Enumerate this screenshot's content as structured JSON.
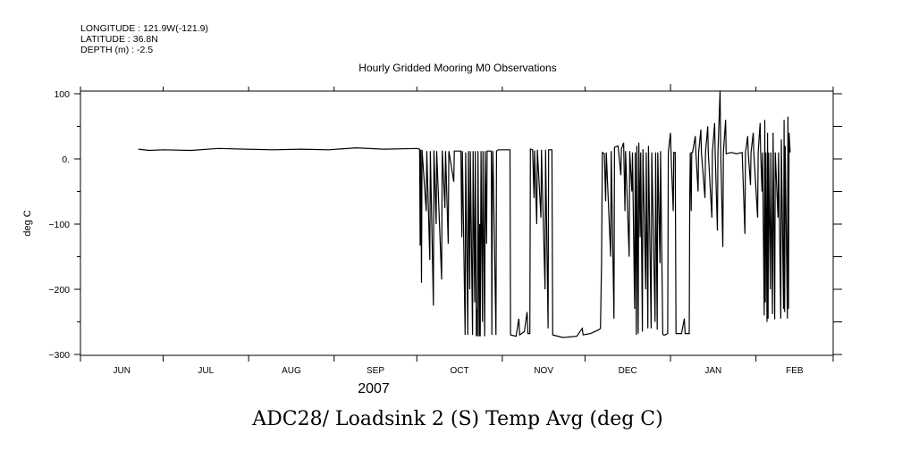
{
  "header": {
    "longitude": "LONGITUDE : 121.9W(-121.9)",
    "latitude": "LATITUDE : 36.8N",
    "depth": "DEPTH (m) : -2.5"
  },
  "chart_data": {
    "type": "line",
    "title": "Hourly Gridded Mooring M0 Observations",
    "caption": "ADC28/ Loadsink 2 (S) Temp Avg (deg C)",
    "xlabel": "2007",
    "ylabel": "deg C",
    "x_units": "days since 2007-06-01",
    "xlim": [
      0,
      273
    ],
    "ylim": [
      -300,
      104
    ],
    "grid": false,
    "month_ticks": [
      0,
      30,
      61,
      92,
      122,
      153,
      183,
      214,
      245,
      273
    ],
    "month_labels": [
      "JUN",
      "JUL",
      "AUG",
      "SEP",
      "OCT",
      "NOV",
      "DEC",
      "JAN",
      "FEB"
    ],
    "year_tick": 214,
    "y_major_ticks": [
      100,
      0,
      -100,
      -200,
      -300
    ],
    "y_tick_labels": [
      "100",
      "0.",
      "-100",
      "-200",
      "-300"
    ],
    "y_minor_ticks": [
      50,
      -50,
      -150,
      -250
    ],
    "series": [
      {
        "name": "Temp Avg",
        "points": [
          [
            21,
            15
          ],
          [
            25,
            13
          ],
          [
            30,
            14
          ],
          [
            40,
            13
          ],
          [
            50,
            16
          ],
          [
            60,
            15
          ],
          [
            70,
            14
          ],
          [
            80,
            15
          ],
          [
            90,
            14
          ],
          [
            100,
            17
          ],
          [
            110,
            15
          ],
          [
            122,
            16
          ],
          [
            123,
            15
          ],
          [
            123.2,
            -133
          ],
          [
            123.4,
            14
          ],
          [
            123.7,
            -190
          ],
          [
            123.9,
            14
          ],
          [
            125.4,
            -80
          ],
          [
            125.6,
            12
          ],
          [
            126.7,
            -155
          ],
          [
            126.9,
            12
          ],
          [
            128,
            -225
          ],
          [
            128.2,
            13
          ],
          [
            129,
            -100
          ],
          [
            129.2,
            12
          ],
          [
            131,
            -185
          ],
          [
            131.2,
            13
          ],
          [
            132.2,
            -75
          ],
          [
            132.4,
            12
          ],
          [
            133.4,
            -130
          ],
          [
            133.6,
            12
          ],
          [
            135.4,
            -35
          ],
          [
            135.6,
            12
          ],
          [
            138,
            12
          ],
          [
            138.3,
            -120
          ],
          [
            138.5,
            12
          ],
          [
            139.5,
            -270
          ],
          [
            139.7,
            10
          ],
          [
            140.5,
            -270
          ],
          [
            140.7,
            12
          ],
          [
            141.2,
            -200
          ],
          [
            141.4,
            12
          ],
          [
            142.2,
            -270
          ],
          [
            142.4,
            12
          ],
          [
            143,
            -220
          ],
          [
            143.2,
            12
          ],
          [
            143.6,
            -272
          ],
          [
            143.8,
            -230
          ],
          [
            144,
            -272
          ],
          [
            144.2,
            12
          ],
          [
            144.6,
            -272
          ],
          [
            144.8,
            -100
          ],
          [
            145,
            -272
          ],
          [
            145.3,
            12
          ],
          [
            145.8,
            -250
          ],
          [
            146,
            12
          ],
          [
            146.6,
            -272
          ],
          [
            146.8,
            12
          ],
          [
            147.3,
            -130
          ],
          [
            147.5,
            12
          ],
          [
            149,
            12
          ],
          [
            149.2,
            -270
          ],
          [
            149.4,
            -40
          ],
          [
            149.6,
            12
          ],
          [
            150.7,
            -270
          ],
          [
            150.9,
            12
          ],
          [
            151.5,
            14
          ],
          [
            154,
            14
          ],
          [
            155.8,
            14
          ],
          [
            156,
            -270
          ],
          [
            158,
            -272
          ],
          [
            159,
            -245
          ],
          [
            159.3,
            -270
          ],
          [
            161,
            -265
          ],
          [
            162,
            -235
          ],
          [
            162.3,
            -268
          ],
          [
            163,
            -268
          ],
          [
            163.2,
            15
          ],
          [
            164,
            14
          ],
          [
            164.5,
            -60
          ],
          [
            164.7,
            13
          ],
          [
            165.5,
            -100
          ],
          [
            165.7,
            14
          ],
          [
            167,
            -90
          ],
          [
            167.2,
            14
          ],
          [
            168.5,
            -200
          ],
          [
            168.7,
            14
          ],
          [
            169.6,
            -260
          ],
          [
            169.8,
            14
          ],
          [
            171,
            14
          ],
          [
            171.3,
            -270
          ],
          [
            175,
            -274
          ],
          [
            180,
            -272
          ],
          [
            182,
            -260
          ],
          [
            182.3,
            -270
          ],
          [
            185,
            -268
          ],
          [
            188,
            -262
          ],
          [
            188.6,
            -260
          ],
          [
            189,
            -160
          ],
          [
            189.3,
            10
          ],
          [
            190,
            8
          ],
          [
            190.5,
            -65
          ],
          [
            190.7,
            10
          ],
          [
            192.3,
            -150
          ],
          [
            192.5,
            12
          ],
          [
            193.5,
            -245
          ],
          [
            193.7,
            18
          ],
          [
            195,
            20
          ],
          [
            196,
            -25
          ],
          [
            196.2,
            15
          ],
          [
            197,
            25
          ],
          [
            197.5,
            -80
          ],
          [
            197.7,
            12
          ],
          [
            199,
            -150
          ],
          [
            199.2,
            12
          ],
          [
            200,
            -50
          ],
          [
            200.2,
            10
          ],
          [
            201,
            -230
          ],
          [
            201.2,
            10
          ],
          [
            201.6,
            -270
          ],
          [
            201.8,
            20
          ],
          [
            202.3,
            -268
          ],
          [
            202.5,
            25
          ],
          [
            203,
            -120
          ],
          [
            203.2,
            10
          ],
          [
            203.8,
            -265
          ],
          [
            204,
            15
          ],
          [
            205,
            -200
          ],
          [
            205.2,
            10
          ],
          [
            205.8,
            -260
          ],
          [
            206,
            20
          ],
          [
            207,
            -260
          ],
          [
            207.2,
            10
          ],
          [
            208.4,
            -250
          ],
          [
            208.6,
            10
          ],
          [
            209.2,
            -262
          ],
          [
            209.4,
            10
          ],
          [
            210.2,
            -160
          ],
          [
            210.4,
            12
          ],
          [
            211.2,
            -268
          ],
          [
            211.4,
            -270
          ],
          [
            212,
            -270
          ],
          [
            213,
            -268
          ],
          [
            213.2,
            10
          ],
          [
            214,
            40
          ],
          [
            214.2,
            10
          ],
          [
            215,
            -80
          ],
          [
            215.2,
            10
          ],
          [
            215.7,
            10
          ],
          [
            216,
            -268
          ],
          [
            218,
            -268
          ],
          [
            219,
            -245
          ],
          [
            219.3,
            -268
          ],
          [
            220.8,
            -268
          ],
          [
            221,
            -50
          ],
          [
            221.2,
            10
          ],
          [
            221.5,
            -80
          ],
          [
            221.7,
            10
          ],
          [
            222,
            10
          ],
          [
            223,
            35
          ],
          [
            223.2,
            10
          ],
          [
            224,
            -50
          ],
          [
            224.2,
            10
          ],
          [
            225,
            45
          ],
          [
            225.2,
            10
          ],
          [
            226.5,
            -60
          ],
          [
            226.7,
            10
          ],
          [
            227.5,
            50
          ],
          [
            227.7,
            10
          ],
          [
            229,
            -90
          ],
          [
            229.2,
            10
          ],
          [
            230,
            55
          ],
          [
            230.2,
            10
          ],
          [
            231,
            -110
          ],
          [
            231.2,
            10
          ],
          [
            232,
            105
          ],
          [
            232.2,
            10
          ],
          [
            233,
            -135
          ],
          [
            233.2,
            10
          ],
          [
            234,
            60
          ],
          [
            234.2,
            8
          ],
          [
            236,
            10
          ],
          [
            238,
            8
          ],
          [
            240,
            10
          ],
          [
            241,
            -115
          ],
          [
            241.2,
            10
          ],
          [
            242,
            35
          ],
          [
            242.2,
            10
          ],
          [
            243,
            -40
          ],
          [
            243.2,
            10
          ],
          [
            244,
            40
          ],
          [
            244.2,
            10
          ],
          [
            245.6,
            -90
          ],
          [
            245.8,
            10
          ],
          [
            246.5,
            55
          ],
          [
            246.7,
            10
          ],
          [
            247.2,
            -50
          ],
          [
            247.4,
            10
          ],
          [
            248,
            -240
          ],
          [
            248.2,
            60
          ],
          [
            248.4,
            -220
          ],
          [
            248.6,
            10
          ],
          [
            249,
            -250
          ],
          [
            249.2,
            40
          ],
          [
            249.4,
            -245
          ],
          [
            249.6,
            10
          ],
          [
            250.2,
            -200
          ],
          [
            250.4,
            10
          ],
          [
            251,
            -238
          ],
          [
            251.2,
            40
          ],
          [
            251.8,
            -246
          ],
          [
            252,
            10
          ],
          [
            253,
            -90
          ],
          [
            253.2,
            10
          ],
          [
            254,
            -245
          ],
          [
            254.2,
            30
          ],
          [
            255,
            -230
          ],
          [
            255.2,
            60
          ],
          [
            255.4,
            -235
          ],
          [
            255.6,
            20
          ],
          [
            256.4,
            -245
          ],
          [
            256.6,
            65
          ],
          [
            256.8,
            -230
          ],
          [
            257,
            40
          ],
          [
            257.4,
            10
          ]
        ]
      }
    ]
  }
}
